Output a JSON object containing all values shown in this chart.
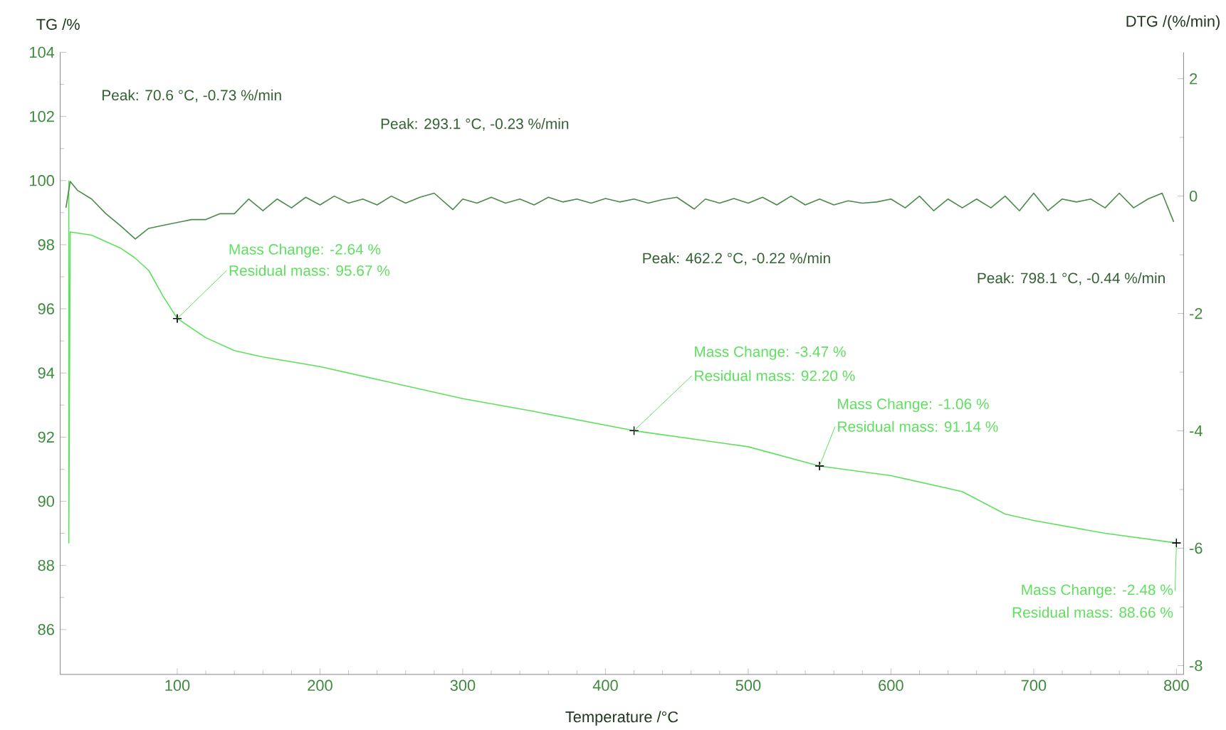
{
  "chart_data": {
    "type": "line",
    "xlabel": "Temperature /°C",
    "ylabel": "TG /%",
    "y2label": "DTG /(%/min)",
    "xlim": [
      18,
      805
    ],
    "ylim": [
      84.6,
      104
    ],
    "y2lim": [
      -8.15,
      2.45
    ],
    "xticks": [
      100,
      200,
      300,
      400,
      500,
      600,
      700,
      800
    ],
    "yticks": [
      86,
      88,
      90,
      92,
      94,
      96,
      98,
      100,
      102,
      104
    ],
    "y2ticks": [
      -8,
      -6,
      -4,
      -2,
      0,
      2
    ],
    "series": [
      {
        "color": "#5ee05e",
        "x": [
          24,
          24,
          25,
          40,
          60,
          70,
          80,
          90,
          100,
          120,
          140,
          160,
          200,
          250,
          300,
          350,
          420,
          500,
          550,
          600,
          650,
          680,
          700,
          750,
          800
        ],
        "values": [
          100,
          88.7,
          98.4,
          98.3,
          97.9,
          97.6,
          97.2,
          96.4,
          95.7,
          95.1,
          94.7,
          94.5,
          94.2,
          93.7,
          93.2,
          92.8,
          92.2,
          91.7,
          91.1,
          90.8,
          90.3,
          89.6,
          89.4,
          89.0,
          88.7
        ]
      },
      {
        "color": "#4a8a4a",
        "axis": "y2",
        "x": [
          22,
          25,
          30,
          40,
          50,
          60,
          70.6,
          80,
          90,
          100,
          110,
          120,
          130,
          140,
          150,
          160,
          170,
          180,
          190,
          200,
          210,
          220,
          230,
          240,
          250,
          260,
          270,
          280,
          293.1,
          300,
          310,
          320,
          330,
          340,
          350,
          360,
          370,
          380,
          390,
          400,
          410,
          420,
          430,
          440,
          450,
          462.2,
          470,
          480,
          490,
          500,
          510,
          520,
          530,
          540,
          550,
          560,
          570,
          580,
          590,
          600,
          610,
          620,
          630,
          640,
          650,
          660,
          670,
          680,
          690,
          700,
          710,
          720,
          730,
          740,
          750,
          760,
          770,
          780,
          790,
          798.1
        ],
        "values": [
          -0.2,
          0.25,
          0.1,
          -0.05,
          -0.3,
          -0.5,
          -0.73,
          -0.55,
          -0.5,
          -0.45,
          -0.4,
          -0.4,
          -0.3,
          -0.3,
          -0.05,
          -0.25,
          -0.05,
          -0.2,
          -0.02,
          -0.15,
          0.0,
          -0.12,
          -0.05,
          -0.15,
          0.0,
          -0.12,
          -0.02,
          0.05,
          -0.23,
          -0.05,
          -0.12,
          -0.02,
          -0.12,
          -0.05,
          -0.15,
          -0.02,
          -0.1,
          -0.05,
          -0.12,
          -0.04,
          -0.1,
          -0.05,
          -0.12,
          -0.06,
          -0.02,
          -0.22,
          -0.05,
          -0.12,
          -0.04,
          -0.12,
          -0.02,
          -0.15,
          0.0,
          -0.15,
          -0.05,
          -0.15,
          -0.08,
          -0.12,
          -0.1,
          -0.05,
          -0.2,
          0.0,
          -0.25,
          -0.05,
          -0.2,
          -0.05,
          -0.2,
          0.0,
          -0.25,
          0.05,
          -0.25,
          -0.05,
          -0.1,
          -0.05,
          -0.2,
          0.05,
          -0.2,
          -0.05,
          0.05,
          -0.44
        ]
      }
    ],
    "annotations": [
      "Peak: 70.6 °C, -0.73 %/min",
      "Peak: 293.1 °C, -0.23 %/min",
      "Peak: 462.2 °C, -0.22 %/min",
      "Peak: 798.1 °C, -0.44 %/min",
      {
        "text": "Mass Change: -2.64 %",
        "x": 100,
        "y": 95.7
      },
      {
        "text": "Residual mass: 95.67 %",
        "x": 100,
        "y": 95.7
      },
      {
        "text": "Mass Change: -3.47 %",
        "x": 420,
        "y": 92.2
      },
      {
        "text": "Residual mass: 92.20 %",
        "x": 420,
        "y": 92.2
      },
      {
        "text": "Mass Change: -1.06 %",
        "x": 550,
        "y": 91.1
      },
      {
        "text": "Residual mass: 91.14 %",
        "x": 550,
        "y": 91.1
      },
      {
        "text": "Mass Change: -2.48 %",
        "x": 800,
        "y": 88.7
      },
      {
        "text": "Residual mass: 88.66 %",
        "x": 800,
        "y": 88.7
      }
    ]
  }
}
